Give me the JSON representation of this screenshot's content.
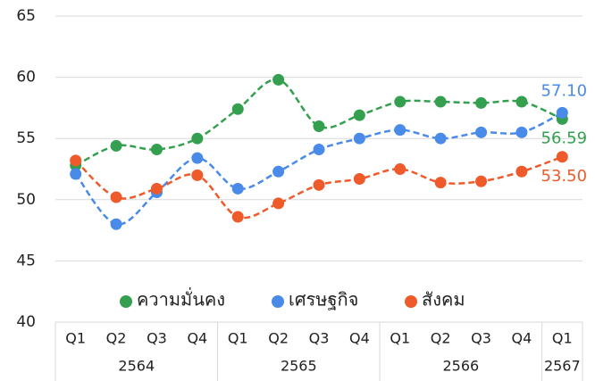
{
  "chart_data": {
    "type": "line",
    "categories": [
      "Q1",
      "Q2",
      "Q3",
      "Q4",
      "Q1",
      "Q2",
      "Q3",
      "Q4",
      "Q1",
      "Q2",
      "Q3",
      "Q4",
      "Q1"
    ],
    "category_groups": [
      {
        "name": "2564",
        "count": 4
      },
      {
        "name": "2565",
        "count": 4
      },
      {
        "name": "2566",
        "count": 4
      },
      {
        "name": "2567",
        "count": 1
      }
    ],
    "series": [
      {
        "name": "ความมั่นคง",
        "color": "#34a04f",
        "values": [
          52.8,
          54.4,
          54.1,
          55.0,
          57.4,
          59.8,
          56.0,
          56.9,
          58.0,
          58.0,
          57.9,
          58.0,
          56.59
        ],
        "value_labels": [
          null,
          null,
          null,
          null,
          null,
          null,
          null,
          null,
          null,
          null,
          null,
          null,
          "56.59"
        ]
      },
      {
        "name": "เศรษฐกิจ",
        "color": "#4a8ae8",
        "values": [
          52.1,
          48.0,
          50.6,
          53.4,
          50.9,
          52.3,
          54.1,
          55.0,
          55.7,
          55.0,
          55.5,
          55.5,
          57.1
        ],
        "value_labels": [
          null,
          null,
          null,
          null,
          null,
          null,
          null,
          null,
          null,
          null,
          null,
          null,
          "57.10"
        ]
      },
      {
        "name": "สังคม",
        "color": "#ee5a2a",
        "values": [
          53.2,
          50.2,
          50.9,
          52.0,
          48.6,
          49.7,
          51.2,
          51.7,
          52.5,
          51.4,
          51.5,
          52.3,
          53.5
        ],
        "value_labels": [
          null,
          null,
          null,
          null,
          null,
          null,
          null,
          null,
          null,
          null,
          null,
          null,
          "53.50"
        ]
      }
    ],
    "ylim": [
      40,
      65
    ],
    "yticks": [
      40,
      45,
      50,
      55,
      60,
      65
    ],
    "grid": true,
    "legend": "bottom",
    "line_style": "dashed"
  }
}
